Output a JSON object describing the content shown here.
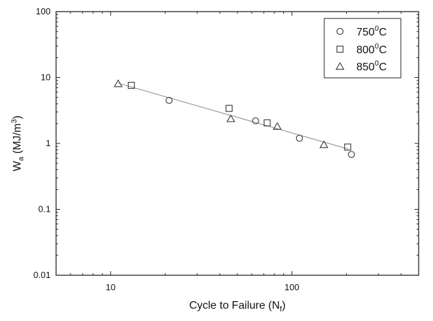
{
  "chart_data": {
    "type": "scatter",
    "title": "",
    "xlabel": "Cycle to Failure (N",
    "xlabel_sub": "f",
    "xlabel_tail": ")",
    "ylabel": "W",
    "ylabel_sub": "a",
    "ylabel_mid": " (MJ/m",
    "ylabel_sup": "3",
    "ylabel_tail": ")",
    "x_scale": "log",
    "y_scale": "log",
    "xlim": [
      5,
      500
    ],
    "ylim": [
      0.01,
      100
    ],
    "x_ticks": [
      10,
      100
    ],
    "x_tick_labels": [
      "10",
      "100"
    ],
    "y_ticks": [
      0.01,
      0.1,
      1,
      10,
      100
    ],
    "y_tick_labels": [
      "0.01",
      "0.1",
      "1",
      "10",
      "100"
    ],
    "grid": false,
    "legend_position": "top-right",
    "series": [
      {
        "name": "750",
        "name_sup": "0",
        "name_tail": "C",
        "marker": "circle",
        "points": [
          [
            21,
            4.5
          ],
          [
            63,
            2.2
          ],
          [
            110,
            1.2
          ],
          [
            213,
            0.68
          ]
        ]
      },
      {
        "name": "800",
        "name_sup": "0",
        "name_tail": "C",
        "marker": "square",
        "points": [
          [
            13,
            7.6
          ],
          [
            45,
            3.4
          ],
          [
            73,
            2.05
          ],
          [
            203,
            0.88
          ]
        ]
      },
      {
        "name": "850",
        "name_sup": "0",
        "name_tail": "C",
        "marker": "triangle",
        "points": [
          [
            11,
            8.0
          ],
          [
            46,
            2.35
          ],
          [
            83,
            1.8
          ],
          [
            150,
            0.95
          ]
        ]
      }
    ],
    "fit_line": {
      "x_start": 11,
      "x_end": 205,
      "y_start": 8.2,
      "y_end": 0.82
    },
    "colors": {
      "marker": "#444444",
      "fit_line": "#888888",
      "axis": "#222222"
    }
  }
}
